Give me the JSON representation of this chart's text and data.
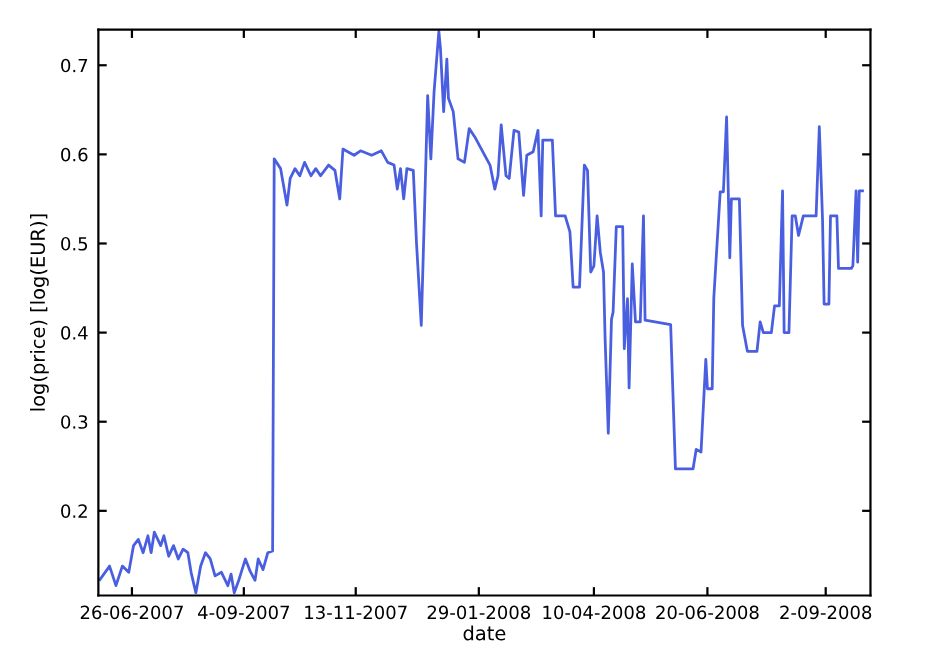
{
  "chart_data": {
    "type": "line",
    "xlabel": "date",
    "ylabel": "log(price) [log(EUR)]",
    "xlim": [
      "2007-06-05",
      "2008-09-30"
    ],
    "ylim": [
      0.105,
      0.74
    ],
    "xticks": [
      {
        "value": "2007-06-26",
        "label": "26-06-2007"
      },
      {
        "value": "2007-09-04",
        "label": "4-09-2007"
      },
      {
        "value": "2007-11-13",
        "label": "13-11-2007"
      },
      {
        "value": "2008-01-29",
        "label": "29-01-2008"
      },
      {
        "value": "2008-04-10",
        "label": "10-04-2008"
      },
      {
        "value": "2008-06-20",
        "label": "20-06-2008"
      },
      {
        "value": "2008-09-02",
        "label": "2-09-2008"
      }
    ],
    "yticks": [
      0.2,
      0.3,
      0.4,
      0.5,
      0.6,
      0.7
    ],
    "grid": false,
    "legend": false,
    "marker": "none",
    "line_style": "solid",
    "series": [
      {
        "color": "#4a5fe0",
        "x": [
          "2007-06-06",
          "2007-06-12",
          "2007-06-16",
          "2007-06-20",
          "2007-06-24",
          "2007-06-27",
          "2007-06-30",
          "2007-07-03",
          "2007-07-06",
          "2007-07-08",
          "2007-07-10",
          "2007-07-14",
          "2007-07-16",
          "2007-07-19",
          "2007-07-22",
          "2007-07-25",
          "2007-07-28",
          "2007-07-31",
          "2007-08-02",
          "2007-08-05",
          "2007-08-08",
          "2007-08-11",
          "2007-08-14",
          "2007-08-17",
          "2007-08-21",
          "2007-08-25",
          "2007-08-27",
          "2007-08-29",
          "2007-09-01",
          "2007-09-05",
          "2007-09-08",
          "2007-09-11",
          "2007-09-13",
          "2007-09-16",
          "2007-09-19",
          "2007-09-22",
          "2007-09-23",
          "2007-09-27",
          "2007-10-01",
          "2007-10-03",
          "2007-10-06",
          "2007-10-09",
          "2007-10-12",
          "2007-10-16",
          "2007-10-19",
          "2007-10-22",
          "2007-10-27",
          "2007-10-31",
          "2007-11-03",
          "2007-11-05",
          "2007-11-08",
          "2007-11-12",
          "2007-11-16",
          "2007-11-23",
          "2007-11-29",
          "2007-12-03",
          "2007-12-07",
          "2007-12-09",
          "2007-12-11",
          "2007-12-13",
          "2007-12-15",
          "2007-12-19",
          "2007-12-21",
          "2007-12-24",
          "2007-12-26",
          "2007-12-28",
          "2007-12-30",
          "2008-01-01",
          "2008-01-04",
          "2008-01-05",
          "2008-01-07",
          "2008-01-09",
          "2008-01-10",
          "2008-01-13",
          "2008-01-16",
          "2008-01-20",
          "2008-01-23",
          "2008-01-27",
          "2008-02-05",
          "2008-02-08",
          "2008-02-10",
          "2008-02-12",
          "2008-02-15",
          "2008-02-17",
          "2008-02-20",
          "2008-02-23",
          "2008-02-26",
          "2008-02-28",
          "2008-03-03",
          "2008-03-06",
          "2008-03-08",
          "2008-03-09",
          "2008-03-15",
          "2008-03-17",
          "2008-03-23",
          "2008-03-26",
          "2008-03-28",
          "2008-04-01",
          "2008-04-04",
          "2008-04-06",
          "2008-04-08",
          "2008-04-10",
          "2008-04-12",
          "2008-04-14",
          "2008-04-16",
          "2008-04-17",
          "2008-04-19",
          "2008-04-21",
          "2008-04-22",
          "2008-04-24",
          "2008-04-28",
          "2008-04-29",
          "2008-05-01",
          "2008-05-02",
          "2008-05-04",
          "2008-05-06",
          "2008-05-09",
          "2008-05-11",
          "2008-05-12",
          "2008-05-28",
          "2008-05-31",
          "2008-06-11",
          "2008-06-13",
          "2008-06-16",
          "2008-06-19",
          "2008-06-20",
          "2008-06-23",
          "2008-06-24",
          "2008-06-28",
          "2008-06-30",
          "2008-07-02",
          "2008-07-04",
          "2008-07-05",
          "2008-07-10",
          "2008-07-12",
          "2008-07-15",
          "2008-07-21",
          "2008-07-23",
          "2008-07-25",
          "2008-07-30",
          "2008-08-01",
          "2008-08-04",
          "2008-08-06",
          "2008-08-07",
          "2008-08-10",
          "2008-08-12",
          "2008-08-14",
          "2008-08-16",
          "2008-08-19",
          "2008-08-27",
          "2008-08-29",
          "2008-08-31",
          "2008-09-01",
          "2008-09-04",
          "2008-09-05",
          "2008-09-09",
          "2008-09-10",
          "2008-09-18",
          "2008-09-19",
          "2008-09-21",
          "2008-09-22",
          "2008-09-23",
          "2008-09-25"
        ],
        "values": [
          0.123,
          0.138,
          0.116,
          0.138,
          0.131,
          0.161,
          0.168,
          0.153,
          0.172,
          0.153,
          0.176,
          0.161,
          0.172,
          0.149,
          0.161,
          0.146,
          0.157,
          0.153,
          0.131,
          0.108,
          0.138,
          0.153,
          0.146,
          0.127,
          0.131,
          0.116,
          0.129,
          0.108,
          0.123,
          0.146,
          0.132,
          0.122,
          0.146,
          0.134,
          0.153,
          0.155,
          0.595,
          0.584,
          0.543,
          0.573,
          0.584,
          0.576,
          0.591,
          0.576,
          0.584,
          0.576,
          0.588,
          0.582,
          0.55,
          0.606,
          0.603,
          0.599,
          0.604,
          0.599,
          0.604,
          0.591,
          0.588,
          0.561,
          0.584,
          0.55,
          0.584,
          0.582,
          0.501,
          0.408,
          0.535,
          0.666,
          0.595,
          0.67,
          0.738,
          0.719,
          0.648,
          0.707,
          0.663,
          0.648,
          0.595,
          0.591,
          0.629,
          0.618,
          0.588,
          0.561,
          0.576,
          0.633,
          0.576,
          0.573,
          0.627,
          0.625,
          0.554,
          0.599,
          0.603,
          0.627,
          0.531,
          0.616,
          0.616,
          0.531,
          0.531,
          0.513,
          0.451,
          0.451,
          0.588,
          0.582,
          0.468,
          0.475,
          0.531,
          0.49,
          0.468,
          0.393,
          0.287,
          0.415,
          0.423,
          0.519,
          0.519,
          0.382,
          0.438,
          0.338,
          0.477,
          0.412,
          0.412,
          0.531,
          0.414,
          0.409,
          0.247,
          0.247,
          0.269,
          0.266,
          0.37,
          0.337,
          0.337,
          0.439,
          0.558,
          0.558,
          0.642,
          0.484,
          0.55,
          0.55,
          0.408,
          0.379,
          0.379,
          0.412,
          0.4,
          0.4,
          0.43,
          0.43,
          0.559,
          0.4,
          0.4,
          0.531,
          0.531,
          0.509,
          0.531,
          0.531,
          0.631,
          0.528,
          0.432,
          0.432,
          0.531,
          0.531,
          0.472,
          0.472,
          0.475,
          0.559,
          0.479,
          0.559,
          0.559
        ]
      }
    ]
  }
}
